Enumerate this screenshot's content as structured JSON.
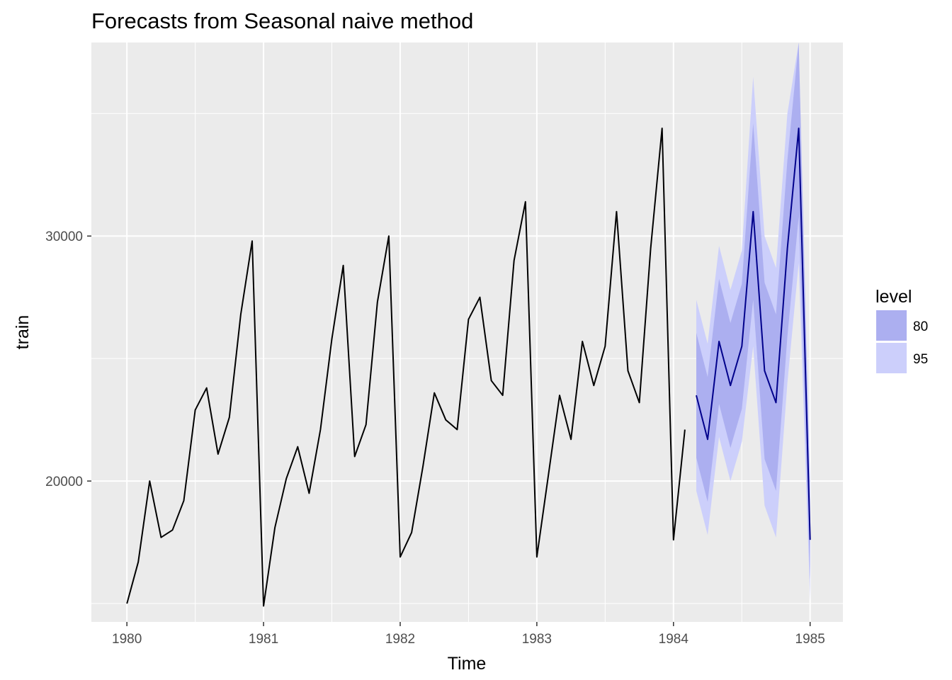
{
  "chart_data": {
    "type": "line",
    "title": "Forecasts from Seasonal naive method",
    "xlabel": "Time",
    "ylabel": "train",
    "xlim": [
      1979.74,
      1985.24
    ],
    "ylim": [
      14250,
      37900
    ],
    "x_ticks": [
      {
        "value": 1980,
        "label": "1980"
      },
      {
        "value": 1981,
        "label": "1981"
      },
      {
        "value": 1982,
        "label": "1982"
      },
      {
        "value": 1983,
        "label": "1983"
      },
      {
        "value": 1984,
        "label": "1984"
      },
      {
        "value": 1985,
        "label": "1985"
      }
    ],
    "y_ticks": [
      {
        "value": 20000,
        "label": "20000"
      },
      {
        "value": 30000,
        "label": "30000"
      }
    ],
    "y_minor_ticks": [
      15000,
      25000,
      35000
    ],
    "grid": true,
    "series": [
      {
        "role": "observed",
        "color": "#000000",
        "start": 1980,
        "frequency": 12,
        "values": [
          15000,
          16700,
          20000,
          17700,
          18000,
          19200,
          22900,
          23800,
          21100,
          22600,
          26800,
          29800,
          14900,
          18100,
          20100,
          21400,
          19500,
          22100,
          25800,
          28800,
          21000,
          22300,
          27300,
          30000,
          16900,
          17900,
          20600,
          23600,
          22500,
          22100,
          26600,
          27500,
          24100,
          23500,
          29000,
          31400,
          16900,
          20200,
          23500,
          21700,
          25700,
          23900,
          25500,
          31000,
          24500,
          23200,
          29500,
          34400,
          17600,
          22100
        ]
      },
      {
        "role": "forecast",
        "color": "#00008b",
        "start": 1984.1667,
        "frequency": 12,
        "values": [
          23500,
          21700,
          25700,
          23900,
          25500,
          31000,
          24500,
          23200,
          29500,
          34400,
          17600
        ],
        "lo80": [
          20950,
          19150,
          23150,
          21350,
          22950,
          27400,
          20900,
          19600,
          25900,
          30800,
          16000
        ],
        "hi80": [
          26050,
          24250,
          28250,
          26450,
          28050,
          34600,
          28100,
          26800,
          33100,
          38000,
          19200
        ],
        "lo95": [
          19600,
          17800,
          21800,
          20000,
          21600,
          25500,
          19000,
          17700,
          24000,
          28900,
          15100
        ],
        "hi95": [
          27400,
          25600,
          29600,
          27800,
          29400,
          36500,
          30000,
          28700,
          35000,
          39900,
          20100
        ]
      }
    ],
    "legend": {
      "title": "level",
      "position": "right",
      "items": [
        {
          "label": "80",
          "color": "#acaff0"
        },
        {
          "label": "95",
          "color": "#cccffb"
        }
      ]
    }
  }
}
